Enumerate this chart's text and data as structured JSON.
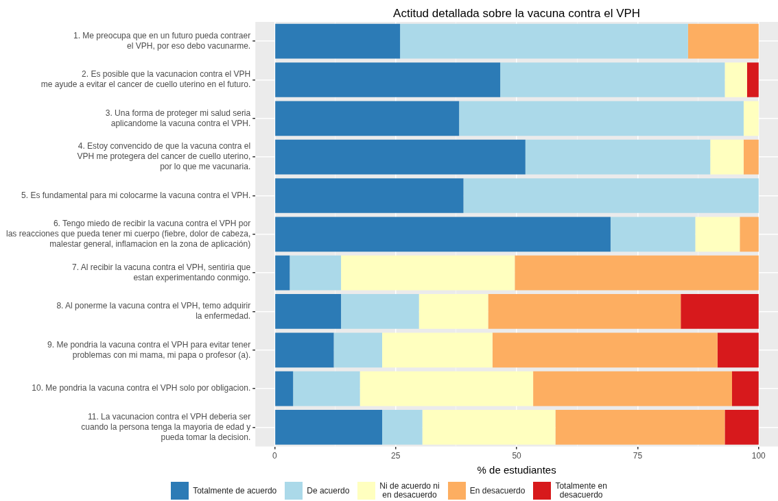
{
  "chart_data": {
    "type": "bar",
    "orientation": "horizontal",
    "stacked": true,
    "title": "Actitud detallada sobre la vacuna contra el VPH",
    "xlabel": "% de estudiantes",
    "categories": [
      "1. Me preocupa que en un futuro pueda contraer\nel VPH, por eso debo vacunarme.",
      "2. Es posible que la vacunacion contra el VPH\nme ayude a evitar el cancer de cuello uterino en el futuro.",
      "3. Una forma de proteger mi salud seria\naplicandome la vacuna contra el VPH.",
      "4. Estoy convencido de que la vacuna contra el\nVPH me protegera del cancer de cuello uterino,\npor lo que me vacunaria.",
      "5. Es fundamental para mi colocarme la vacuna contra el VPH.",
      "6. Tengo miedo de recibir la vacuna contra el VPH por\nlas reacciones que pueda tener mi cuerpo (fiebre, dolor de cabeza,\nmalestar general, inflamacion en la zona de aplicación)",
      "7. Al recibir la vacuna contra el VPH, sentiria que\nestan experimentando conmigo.",
      "8. Al ponerme la vacuna contra el VPH, temo adquirir\nla enfermedad.",
      "9. Me pondria la vacuna contra el VPH para evitar tener\nproblemas con mi mama, mi papa o profesor (a).",
      "10. Me pondria la vacuna contra el VPH solo por obligacion.",
      "11. La vacunacion contra el VPH deberia ser\ncuando la persona tenga la mayoria de edad y\npueda tomar la decision."
    ],
    "series": [
      {
        "name": "Totalmente de acuerdo",
        "color": "#2c7bb6",
        "values": [
          25.9,
          46.6,
          38.1,
          51.8,
          39.0,
          69.4,
          3.1,
          13.7,
          12.2,
          3.8,
          22.2
        ]
      },
      {
        "name": "De acuerdo",
        "color": "#abd9e9",
        "values": [
          59.5,
          46.4,
          58.8,
          38.2,
          61.0,
          17.5,
          10.6,
          16.1,
          10.0,
          13.8,
          8.3
        ]
      },
      {
        "name": "Ni de acuerdo ni\nen desacuerdo",
        "color": "#ffffbf",
        "values": [
          0,
          4.6,
          3.1,
          6.9,
          0,
          9.2,
          35.9,
          14.3,
          22.8,
          35.8,
          27.5
        ]
      },
      {
        "name": "En desacuerdo",
        "color": "#fdae61",
        "values": [
          14.6,
          0,
          0,
          3.1,
          0,
          3.9,
          50.4,
          39.8,
          46.5,
          41.1,
          35.0
        ]
      },
      {
        "name": "Totalmente en\ndesacuerdo",
        "color": "#d7191c",
        "values": [
          0,
          2.4,
          0,
          0,
          0,
          0,
          0,
          16.1,
          8.5,
          5.5,
          7.0
        ]
      }
    ],
    "xlim": [
      -4,
      104
    ],
    "xticks": [
      0,
      {
        "value": 12.5,
        "label": null
      },
      25,
      {
        "value": 37.5,
        "label": null
      },
      50,
      {
        "value": 62.5,
        "label": null
      },
      75,
      {
        "value": 87.5,
        "label": null
      },
      100
    ],
    "grid": true,
    "legend": "bottom"
  }
}
